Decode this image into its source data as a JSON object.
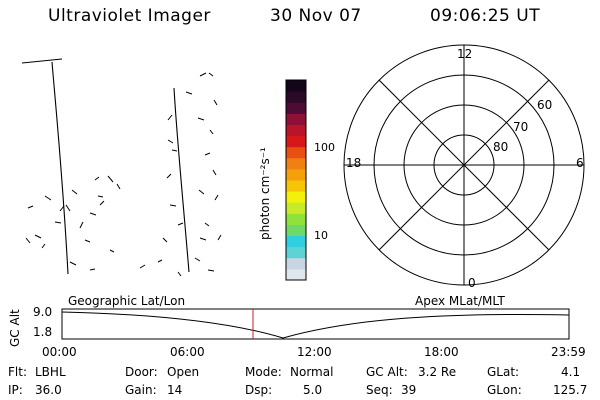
{
  "header": {
    "title": "Ultraviolet Imager",
    "date": "30 Nov 07",
    "time": "09:06:25 UT"
  },
  "colorbar": {
    "unit_label": "photon cm⁻²s⁻¹",
    "tick_100": "100",
    "tick_10": "10",
    "scale": "log",
    "colors": [
      "#dfe7ee",
      "#c7d6e2",
      "#5fd2d6",
      "#2fcfe2",
      "#6fd86a",
      "#8fe23a",
      "#c8ea2a",
      "#f3f00a",
      "#f7c40a",
      "#f5a00a",
      "#f08012",
      "#e85010",
      "#d81818",
      "#b8142a",
      "#8e1036",
      "#4e0c34",
      "#2a0a28",
      "#14061a"
    ]
  },
  "polar": {
    "mlt_labels": {
      "top": "12",
      "left": "18",
      "right": "6",
      "bottom": "0"
    },
    "lat_labels": [
      "60",
      "70",
      "80"
    ]
  },
  "orbit": {
    "left_label": "Geographic Lat/Lon",
    "right_label": "Apex MLat/MLT",
    "y_label": "GC Alt",
    "y_top": "9.0",
    "y_bottom": "1.8",
    "x_ticks": [
      "00:00",
      "06:00",
      "12:00",
      "18:00",
      "23:59"
    ],
    "marker_color": "#cc2222"
  },
  "status": {
    "flt_label": "Flt:",
    "flt_value": "LBHL",
    "ip_label": "IP:",
    "ip_value": "36.0",
    "door_label": "Door:",
    "door_value": "Open",
    "gain_label": "Gain:",
    "gain_value": "14",
    "mode_label": "Mode:",
    "mode_value": "Normal",
    "dsp_label": "Dsp:",
    "dsp_value": "5.0",
    "gcalt_label": "GC Alt:",
    "gcalt_value": "3.2 Re",
    "seq_label": "Seq:",
    "seq_value": "39",
    "glat_label": "GLat:",
    "glat_value": "4.1",
    "glon_label": "GLon:",
    "glon_value": "125.7"
  }
}
